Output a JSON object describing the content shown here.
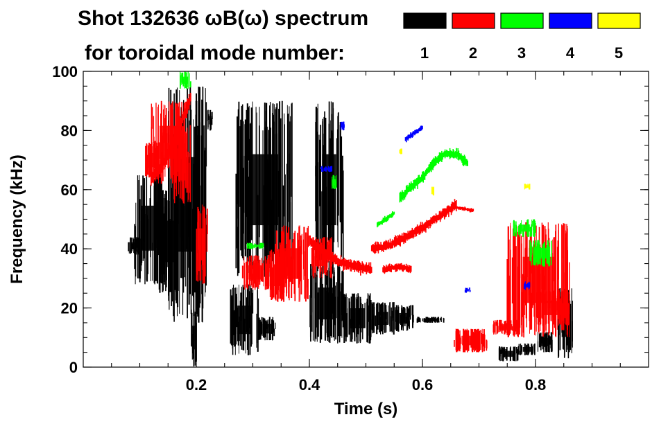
{
  "chart_data": {
    "type": "scatter",
    "title_line1": "Shot 132636 ωB(ω) spectrum",
    "title_line2": "for toroidal mode number:",
    "xlabel": "Time (s)",
    "ylabel": "Frequency (kHz)",
    "xlim": [
      0.0,
      1.0
    ],
    "ylim": [
      0,
      100
    ],
    "x_ticks": [
      0.2,
      0.4,
      0.6,
      0.8
    ],
    "x_tick_labels": [
      "0.2",
      "0.4",
      "0.6",
      "0.8"
    ],
    "x_minor_step": 0.05,
    "y_ticks": [
      0,
      20,
      40,
      60,
      80,
      100
    ],
    "y_tick_labels": [
      "0",
      "20",
      "40",
      "60",
      "80",
      "100"
    ],
    "y_minor_step": 5,
    "legend": [
      {
        "label": "1",
        "color": "#000000"
      },
      {
        "label": "2",
        "color": "#ff0000"
      },
      {
        "label": "3",
        "color": "#00ff00"
      },
      {
        "label": "4",
        "color": "#0000ff"
      },
      {
        "label": "5",
        "color": "#ffff00"
      }
    ],
    "series": [
      {
        "name": "n=1",
        "color": "#000000",
        "regions": [
          {
            "t0": 0.08,
            "t1": 0.1,
            "f0": 38,
            "f1": 44
          },
          {
            "t0": 0.09,
            "t1": 0.14,
            "f0": 28,
            "f1": 66
          },
          {
            "t0": 0.13,
            "t1": 0.18,
            "f0": 25,
            "f1": 60
          },
          {
            "t0": 0.15,
            "t1": 0.22,
            "f0": 15,
            "f1": 95
          },
          {
            "t0": 0.22,
            "t1": 0.23,
            "f0": 80,
            "f1": 87
          },
          {
            "t0": 0.19,
            "t1": 0.2,
            "f0": 0,
            "f1": 20
          },
          {
            "t0": 0.26,
            "t1": 0.31,
            "f0": 4,
            "f1": 28
          },
          {
            "t0": 0.31,
            "t1": 0.34,
            "f0": 9,
            "f1": 17
          },
          {
            "t0": 0.27,
            "t1": 0.37,
            "f0": 30,
            "f1": 90
          },
          {
            "t0": 0.4,
            "t1": 0.46,
            "f0": 8,
            "f1": 35
          },
          {
            "t0": 0.46,
            "t1": 0.51,
            "f0": 8,
            "f1": 25
          },
          {
            "t0": 0.41,
            "t1": 0.46,
            "f0": 30,
            "f1": 90
          },
          {
            "t0": 0.51,
            "t1": 0.55,
            "f0": 11,
            "f1": 22
          },
          {
            "t0": 0.55,
            "t1": 0.585,
            "f0": 12,
            "f1": 21
          },
          {
            "t0": 0.59,
            "t1": 0.64,
            "f0": 15,
            "f1": 17
          },
          {
            "t0": 0.735,
            "t1": 0.77,
            "f0": 2,
            "f1": 7
          },
          {
            "t0": 0.77,
            "t1": 0.8,
            "f0": 4,
            "f1": 8
          },
          {
            "t0": 0.8,
            "t1": 0.83,
            "f0": 5,
            "f1": 12
          },
          {
            "t0": 0.84,
            "t1": 0.865,
            "f0": 3,
            "f1": 27
          }
        ],
        "paths": []
      },
      {
        "name": "n=2",
        "color": "#ff0000",
        "regions": [
          {
            "t0": 0.11,
            "t1": 0.14,
            "f0": 64,
            "f1": 76
          },
          {
            "t0": 0.12,
            "t1": 0.18,
            "f0": 62,
            "f1": 90
          },
          {
            "t0": 0.16,
            "t1": 0.19,
            "f0": 55,
            "f1": 82
          },
          {
            "t0": 0.2,
            "t1": 0.22,
            "f0": 28,
            "f1": 55
          },
          {
            "t0": 0.33,
            "t1": 0.36,
            "f0": 22,
            "f1": 40
          },
          {
            "t0": 0.34,
            "t1": 0.4,
            "f0": 22,
            "f1": 48
          },
          {
            "t0": 0.4,
            "t1": 0.44,
            "f0": 30,
            "f1": 44
          },
          {
            "t0": 0.28,
            "t1": 0.33,
            "f0": 26,
            "f1": 38
          },
          {
            "t0": 0.655,
            "t1": 0.715,
            "f0": 5,
            "f1": 13
          },
          {
            "t0": 0.725,
            "t1": 0.77,
            "f0": 11,
            "f1": 16
          },
          {
            "t0": 0.75,
            "t1": 0.86,
            "f0": 10,
            "f1": 49
          },
          {
            "t0": 0.8,
            "t1": 0.86,
            "f0": 14,
            "f1": 26
          }
        ],
        "paths": [
          {
            "points": [
              [
                0.12,
                64
              ],
              [
                0.14,
                68
              ],
              [
                0.16,
                76
              ],
              [
                0.18,
                86
              ],
              [
                0.19,
                91
              ]
            ],
            "spread": 2.0
          },
          {
            "points": [
              [
                0.4,
                43
              ],
              [
                0.42,
                40
              ],
              [
                0.44,
                37
              ],
              [
                0.46,
                35
              ],
              [
                0.48,
                34
              ],
              [
                0.51,
                33
              ]
            ],
            "spread": 1.5
          },
          {
            "points": [
              [
                0.51,
                40
              ],
              [
                0.54,
                41
              ],
              [
                0.57,
                44
              ],
              [
                0.6,
                47
              ],
              [
                0.63,
                51
              ],
              [
                0.66,
                55
              ]
            ],
            "spread": 1.4
          },
          {
            "points": [
              [
                0.53,
                33
              ],
              [
                0.56,
                34
              ],
              [
                0.58,
                33
              ]
            ],
            "spread": 1.0
          },
          {
            "points": [
              [
                0.66,
                54
              ],
              [
                0.69,
                53
              ]
            ],
            "spread": 0.5
          }
        ]
      },
      {
        "name": "n=3",
        "color": "#00ff00",
        "regions": [
          {
            "t0": 0.17,
            "t1": 0.19,
            "f0": 94,
            "f1": 100
          },
          {
            "t0": 0.29,
            "t1": 0.32,
            "f0": 40,
            "f1": 42
          },
          {
            "t0": 0.44,
            "t1": 0.45,
            "f0": 60,
            "f1": 65
          },
          {
            "t0": 0.76,
            "t1": 0.8,
            "f0": 44,
            "f1": 50
          },
          {
            "t0": 0.79,
            "t1": 0.83,
            "f0": 34,
            "f1": 43
          }
        ],
        "paths": [
          {
            "points": [
              [
                0.56,
                57
              ],
              [
                0.58,
                61
              ],
              [
                0.6,
                64
              ],
              [
                0.62,
                69
              ],
              [
                0.64,
                72
              ],
              [
                0.66,
                72
              ],
              [
                0.68,
                69
              ]
            ],
            "spread": 1.4
          },
          {
            "points": [
              [
                0.52,
                48
              ],
              [
                0.55,
                52
              ]
            ],
            "spread": 0.8
          }
        ]
      },
      {
        "name": "n=4",
        "color": "#0000ff",
        "regions": [
          {
            "t0": 0.42,
            "t1": 0.44,
            "f0": 66,
            "f1": 68
          },
          {
            "t0": 0.455,
            "t1": 0.465,
            "f0": 80,
            "f1": 83
          },
          {
            "t0": 0.675,
            "t1": 0.685,
            "f0": 25,
            "f1": 27
          },
          {
            "t0": 0.78,
            "t1": 0.79,
            "f0": 26,
            "f1": 29
          }
        ],
        "paths": [
          {
            "points": [
              [
                0.57,
                77
              ],
              [
                0.6,
                81
              ]
            ],
            "spread": 0.8
          }
        ]
      },
      {
        "name": "n=5",
        "color": "#ffff00",
        "regions": [
          {
            "t0": 0.56,
            "t1": 0.565,
            "f0": 72,
            "f1": 74
          },
          {
            "t0": 0.615,
            "t1": 0.62,
            "f0": 58,
            "f1": 61
          },
          {
            "t0": 0.78,
            "t1": 0.79,
            "f0": 60,
            "f1": 62
          }
        ],
        "paths": []
      }
    ]
  }
}
